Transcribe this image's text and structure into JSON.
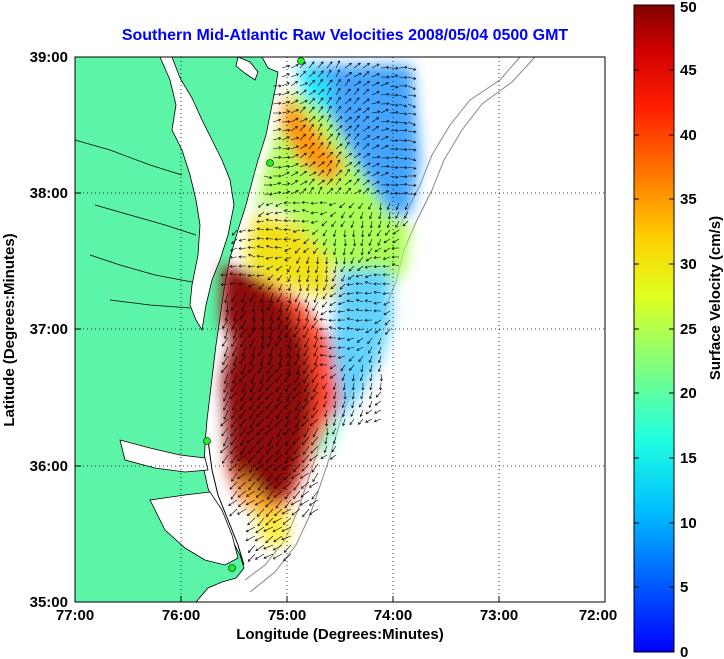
{
  "chart_data": {
    "type": "heatmap",
    "title": "Southern Mid-Atlantic Raw Velocities 2008/05/04 0500 GMT",
    "xlabel": "Longitude (Degrees:Minutes)",
    "ylabel": "Latitude (Degrees:Minutes)",
    "colorbar_label": "Surface Velocity (cm/s)",
    "x_ticks": [
      "77:00",
      "76:00",
      "75:00",
      "74:00",
      "73:00",
      "72:00"
    ],
    "y_ticks": [
      "39:00",
      "38:00",
      "37:00",
      "36:00",
      "35:00"
    ],
    "colorbar_ticks": [
      "50",
      "45",
      "40",
      "35",
      "30",
      "25",
      "20",
      "15",
      "10",
      "5",
      "0"
    ],
    "xlim": [
      -77,
      -72
    ],
    "ylim": [
      35,
      39
    ],
    "clim": [
      0,
      50
    ],
    "grid": "dotted",
    "colors": {
      "land": "#5cf5a8",
      "title": "#0000ff",
      "coast": "#000000",
      "bathymetry": "#888888",
      "station": "#22ee22"
    }
  }
}
